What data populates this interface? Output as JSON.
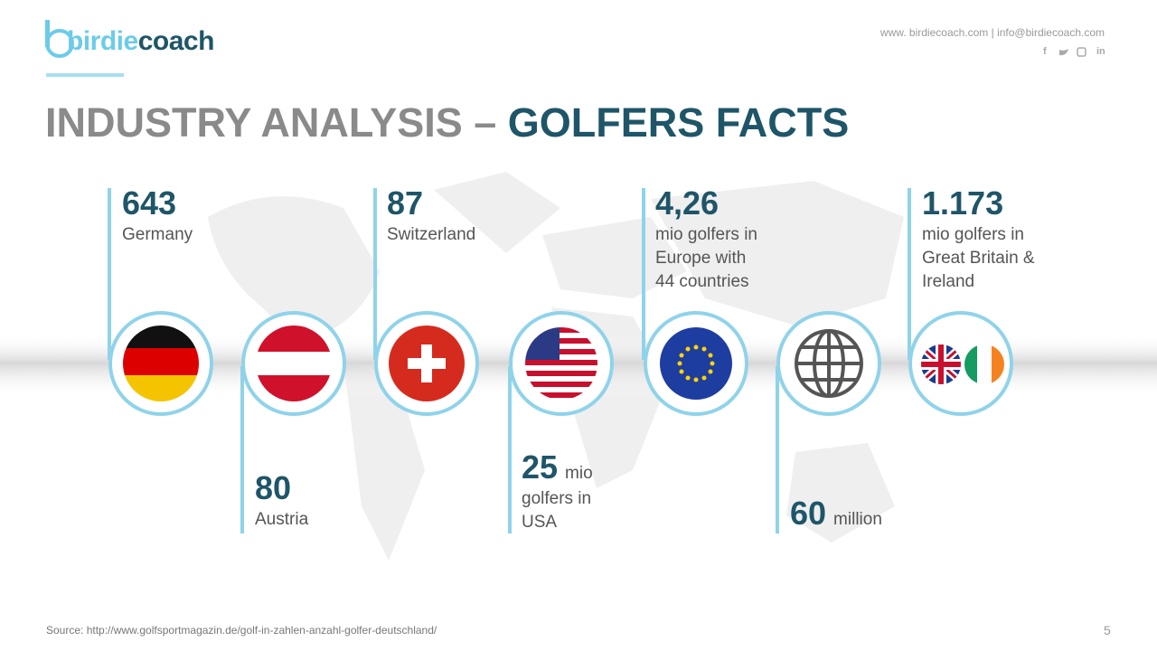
{
  "logo": {
    "part1": "birdie",
    "part2": "coach"
  },
  "contact": "www. birdiecoach.com | info@birdiecoach.com",
  "social": [
    "f",
    "in"
  ],
  "title": {
    "part1": "INDUSTRY ANALYSIS – ",
    "part2": "GOLFERS FACTS"
  },
  "facts": [
    {
      "number": "643",
      "lines": [
        "Germany"
      ]
    },
    {
      "number": "80",
      "lines": [
        "Austria"
      ]
    },
    {
      "number": "87",
      "lines": [
        "Switzerland"
      ]
    },
    {
      "number": "25",
      "unit": "mio",
      "lines": [
        "golfers in",
        "USA"
      ]
    },
    {
      "number": "4,26",
      "lines": [
        "mio golfers in",
        "Europe with",
        "44 countries"
      ]
    },
    {
      "number": "60",
      "unit": "million",
      "lines": []
    },
    {
      "number": "1.173",
      "lines": [
        "mio golfers in",
        "Great Britain &",
        "Ireland"
      ]
    }
  ],
  "source": "Source: http://www.golfsportmagazin.de/golf-in-zahlen-anzahl-golfer-deutschland/",
  "page_number": "5"
}
